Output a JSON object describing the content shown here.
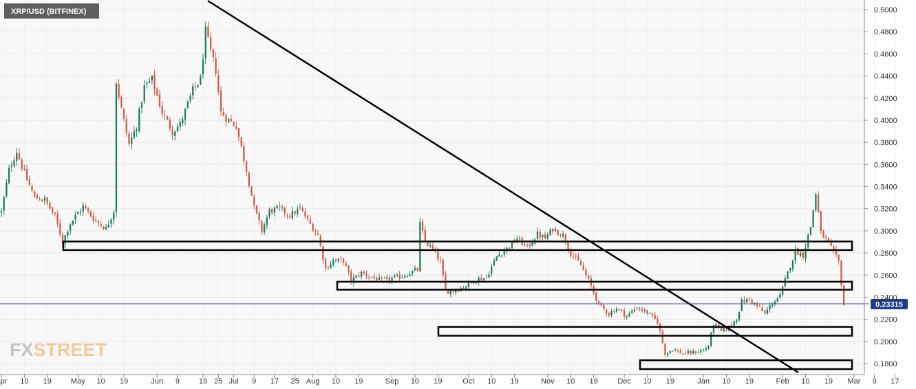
{
  "chart_data": {
    "type": "candlestick",
    "title": "XRP/USD (BITFINEX)",
    "current_price": "0.23315",
    "watermark": {
      "part1": "FX",
      "part2": "STREET"
    },
    "ylim": [
      0.172,
      0.508
    ],
    "y_ticks": [
      "0.1800",
      "0.2000",
      "0.2200",
      "0.2400",
      "0.2600",
      "0.2800",
      "0.3000",
      "0.3200",
      "0.3400",
      "0.3600",
      "0.3800",
      "0.4000",
      "0.4200",
      "0.4400",
      "0.4600",
      "0.4800",
      "0.5000"
    ],
    "x_ticks": [
      "Apr",
      "10",
      "19",
      "May",
      "10",
      "19",
      "Jun",
      "9",
      "19",
      "25",
      "Jul",
      "9",
      "17",
      "25",
      "Aug",
      "10",
      "19",
      "Sep",
      "10",
      "19",
      "Oct",
      "10",
      "19",
      "Nov",
      "10",
      "19",
      "Dec",
      "10",
      "19",
      "Jan",
      "10",
      "19",
      "Feb",
      "10",
      "19",
      "Mar",
      "9",
      "17"
    ],
    "up_color": "#1e7d5e",
    "down_color": "#d05c4b",
    "trendline": {
      "from": [
        "May 19",
        0.508
      ],
      "to": [
        "Feb 23",
        0.172
      ]
    },
    "support_resistance_zones": [
      {
        "lo": 0.2826,
        "hi": 0.2904
      },
      {
        "lo": 0.2468,
        "hi": 0.254
      },
      {
        "lo": 0.2052,
        "hi": 0.2132
      },
      {
        "lo": 0.175,
        "hi": 0.183
      }
    ],
    "price_anchors": [
      [
        "Apr 1",
        0.317
      ],
      [
        "Apr 4",
        0.355
      ],
      [
        "Apr 7",
        0.372
      ],
      [
        "Apr 10",
        0.352
      ],
      [
        "Apr 14",
        0.33
      ],
      [
        "Apr 18",
        0.328
      ],
      [
        "Apr 22",
        0.313
      ],
      [
        "Apr 25",
        0.29
      ],
      [
        "Apr 28",
        0.307
      ],
      [
        "May 3",
        0.322
      ],
      [
        "May 8",
        0.309
      ],
      [
        "May 12",
        0.302
      ],
      [
        "May 15",
        0.318
      ],
      [
        "May 16",
        0.435
      ],
      [
        "May 18",
        0.41
      ],
      [
        "May 21",
        0.378
      ],
      [
        "May 24",
        0.395
      ],
      [
        "May 27",
        0.43
      ],
      [
        "May 30",
        0.437
      ],
      [
        "Jun 3",
        0.407
      ],
      [
        "Jun 7",
        0.39
      ],
      [
        "Jun 10",
        0.396
      ],
      [
        "Jun 15",
        0.427
      ],
      [
        "Jun 18",
        0.437
      ],
      [
        "Jun 20",
        0.48
      ],
      [
        "Jun 22",
        0.462
      ],
      [
        "Jun 24",
        0.445
      ],
      [
        "Jun 26",
        0.407
      ],
      [
        "Jun 29",
        0.4
      ],
      [
        "Jul 2",
        0.395
      ],
      [
        "Jul 6",
        0.355
      ],
      [
        "Jul 9",
        0.321
      ],
      [
        "Jul 12",
        0.3
      ],
      [
        "Jul 15",
        0.318
      ],
      [
        "Jul 19",
        0.32
      ],
      [
        "Jul 23",
        0.314
      ],
      [
        "Jul 27",
        0.32
      ],
      [
        "Jul 31",
        0.306
      ],
      [
        "Aug 3",
        0.296
      ],
      [
        "Aug 6",
        0.266
      ],
      [
        "Aug 9",
        0.273
      ],
      [
        "Aug 13",
        0.273
      ],
      [
        "Aug 16",
        0.255
      ],
      [
        "Aug 20",
        0.262
      ],
      [
        "Aug 24",
        0.258
      ],
      [
        "Aug 28",
        0.255
      ],
      [
        "Sep 1",
        0.257
      ],
      [
        "Sep 5",
        0.259
      ],
      [
        "Sep 8",
        0.262
      ],
      [
        "Sep 11",
        0.265
      ],
      [
        "Sep 12",
        0.306
      ],
      [
        "Sep 14",
        0.29
      ],
      [
        "Sep 17",
        0.283
      ],
      [
        "Sep 20",
        0.272
      ],
      [
        "Sep 22",
        0.245
      ],
      [
        "Sep 25",
        0.246
      ],
      [
        "Sep 29",
        0.249
      ],
      [
        "Oct 4",
        0.256
      ],
      [
        "Oct 8",
        0.258
      ],
      [
        "Oct 12",
        0.277
      ],
      [
        "Oct 16",
        0.284
      ],
      [
        "Oct 20",
        0.293
      ],
      [
        "Oct 24",
        0.285
      ],
      [
        "Oct 28",
        0.297
      ],
      [
        "Oct 31",
        0.293
      ],
      [
        "Nov 3",
        0.302
      ],
      [
        "Nov 7",
        0.296
      ],
      [
        "Nov 10",
        0.28
      ],
      [
        "Nov 14",
        0.269
      ],
      [
        "Nov 18",
        0.25
      ],
      [
        "Nov 21",
        0.233
      ],
      [
        "Nov 25",
        0.225
      ],
      [
        "Nov 28",
        0.23
      ],
      [
        "Dec 2",
        0.223
      ],
      [
        "Dec 6",
        0.231
      ],
      [
        "Dec 10",
        0.226
      ],
      [
        "Dec 14",
        0.218
      ],
      [
        "Dec 17",
        0.189
      ],
      [
        "Dec 20",
        0.193
      ],
      [
        "Dec 24",
        0.189
      ],
      [
        "Dec 28",
        0.19
      ],
      [
        "Jan 1",
        0.192
      ],
      [
        "Jan 3",
        0.196
      ],
      [
        "Jan 5",
        0.216
      ],
      [
        "Jan 8",
        0.209
      ],
      [
        "Jan 11",
        0.213
      ],
      [
        "Jan 14",
        0.221
      ],
      [
        "Jan 16",
        0.236
      ],
      [
        "Jan 19",
        0.238
      ],
      [
        "Jan 22",
        0.232
      ],
      [
        "Jan 25",
        0.225
      ],
      [
        "Jan 28",
        0.235
      ],
      [
        "Jan 31",
        0.241
      ],
      [
        "Feb 3",
        0.262
      ],
      [
        "Feb 6",
        0.282
      ],
      [
        "Feb 9",
        0.278
      ],
      [
        "Feb 12",
        0.304
      ],
      [
        "Feb 14",
        0.334
      ],
      [
        "Feb 16",
        0.298
      ],
      [
        "Feb 18",
        0.292
      ],
      [
        "Feb 21",
        0.28
      ],
      [
        "Feb 23",
        0.272
      ],
      [
        "Feb 25",
        0.233
      ]
    ]
  }
}
